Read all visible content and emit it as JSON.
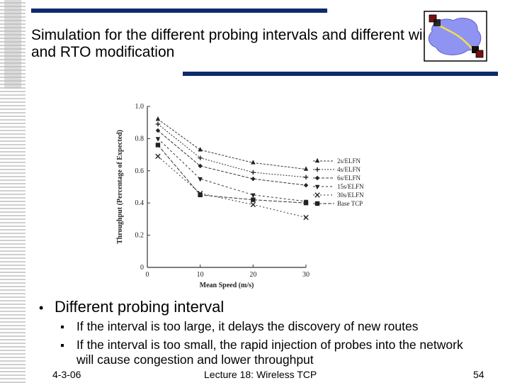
{
  "slide": {
    "title": "Simulation for the different probing intervals and different window and RTO modification",
    "bullet_main": "Different probing interval",
    "sub_bullets": [
      "If the interval is too large, it delays the discovery of new routes",
      "If the interval is too small, the rapid injection of probes into the network will cause congestion and lower throughput"
    ],
    "footer": {
      "date": "4-3-06",
      "center": "Lecture 18: Wireless TCP",
      "page": "54"
    }
  },
  "colors": {
    "accent_bar": "#0d2a6b",
    "logo_blob": "#8f93f2",
    "logo_square": "#7a0f0f"
  },
  "icons": {
    "bullet": "bullet-dot-icon",
    "sub_bullet": "square-bullet-icon",
    "logo": "network-cloud-icon"
  },
  "chart_data": {
    "type": "line",
    "x": [
      2,
      10,
      20,
      30
    ],
    "series": [
      {
        "name": "2s/ELFN",
        "values": [
          0.92,
          0.73,
          0.65,
          0.61
        ],
        "marker": "triangle-up"
      },
      {
        "name": "4s/ELFN",
        "values": [
          0.89,
          0.68,
          0.59,
          0.56
        ],
        "marker": "plus"
      },
      {
        "name": "6s/ELFN",
        "values": [
          0.85,
          0.63,
          0.55,
          0.51
        ],
        "marker": "diamond"
      },
      {
        "name": "15s/ELFN",
        "values": [
          0.8,
          0.55,
          0.45,
          0.41
        ],
        "marker": "triangle-down"
      },
      {
        "name": "30s/ELFN",
        "values": [
          0.69,
          0.46,
          0.39,
          0.31
        ],
        "marker": "x"
      },
      {
        "name": "Base TCP",
        "values": [
          0.76,
          0.45,
          0.42,
          0.4
        ],
        "marker": "square"
      }
    ],
    "xlabel": "Mean Speed (m/s)",
    "ylabel": "Throughput (Percentage of Expected)",
    "xticks": [
      "0",
      "10",
      "20",
      "30"
    ],
    "yticks": [
      "0",
      "0.2",
      "0.4",
      "0.6",
      "0.8",
      "1.0"
    ],
    "xlim": [
      0,
      30
    ],
    "ylim": [
      0,
      1.0
    ],
    "grid": false,
    "legend": "right"
  }
}
